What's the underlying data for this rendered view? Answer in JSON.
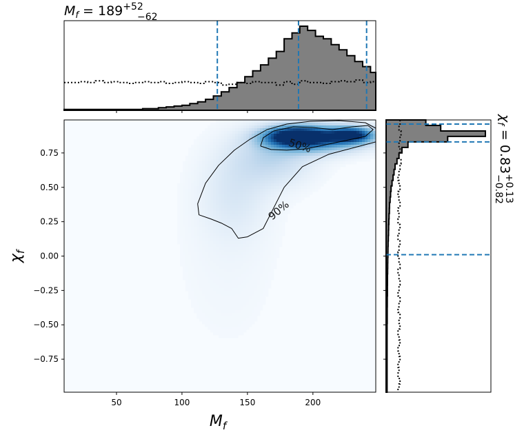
{
  "chart_data": {
    "type": "corner-plot",
    "top_title": {
      "symbol": "M",
      "sub": "f",
      "eq": " = ",
      "median": "189",
      "plus": "+52",
      "minus": "−62"
    },
    "right_title": {
      "symbol": "χ",
      "sub": "f",
      "eq": " = ",
      "median": "0.83",
      "plus": "+0.13",
      "minus": "−0.82"
    },
    "xlabel": {
      "symbol": "M",
      "sub": "f"
    },
    "ylabel": {
      "symbol": "χ",
      "sub": "f"
    },
    "xlim": [
      10,
      248
    ],
    "ylim": [
      -0.99,
      0.99
    ],
    "x_ticks": [
      50,
      100,
      150,
      200
    ],
    "x_tick_labels": [
      "50",
      "100",
      "150",
      "200"
    ],
    "y_ticks": [
      0.75,
      0.5,
      0.25,
      0.0,
      -0.25,
      -0.5,
      -0.75
    ],
    "y_tick_labels": [
      "0.75",
      "0.50",
      "0.25",
      "0.00",
      "−0.25",
      "−0.50",
      "−0.75"
    ],
    "top_histogram": {
      "bin_edges": [
        10,
        16,
        22,
        28,
        34,
        40,
        46,
        52,
        58,
        64,
        70,
        76,
        82,
        88,
        94,
        100,
        106,
        112,
        118,
        124,
        130,
        136,
        142,
        148,
        154,
        160,
        166,
        172,
        178,
        184,
        190,
        196,
        202,
        208,
        214,
        220,
        226,
        232,
        238,
        244,
        248
      ],
      "posterior": [
        0.01,
        0.01,
        0.01,
        0.01,
        0.01,
        0.01,
        0.01,
        0.01,
        0.01,
        0.01,
        0.02,
        0.02,
        0.03,
        0.04,
        0.05,
        0.06,
        0.08,
        0.1,
        0.13,
        0.17,
        0.22,
        0.27,
        0.33,
        0.4,
        0.47,
        0.54,
        0.62,
        0.7,
        0.85,
        0.92,
        1.0,
        0.95,
        0.88,
        0.85,
        0.78,
        0.72,
        0.65,
        0.58,
        0.52,
        0.45
      ],
      "prior": [
        0.33,
        0.33,
        0.34,
        0.33,
        0.35,
        0.33,
        0.34,
        0.33,
        0.32,
        0.33,
        0.34,
        0.33,
        0.34,
        0.32,
        0.33,
        0.34,
        0.33,
        0.32,
        0.34,
        0.33,
        0.3,
        0.31,
        0.33,
        0.32,
        0.34,
        0.33,
        0.33,
        0.3,
        0.34,
        0.31,
        0.35,
        0.33,
        0.33,
        0.32,
        0.34,
        0.35,
        0.34,
        0.36,
        0.33,
        0.34
      ],
      "quantile_lines": [
        127,
        189,
        241
      ]
    },
    "right_histogram": {
      "bin_edges": [
        0.99,
        0.95,
        0.91,
        0.87,
        0.83,
        0.79,
        0.75,
        0.71,
        0.67,
        0.63,
        0.59,
        0.55,
        0.51,
        0.47,
        0.43,
        0.39,
        0.35,
        0.31,
        0.27,
        0.23,
        0.19,
        0.15,
        0.11,
        0.07,
        0.03,
        -0.01,
        -0.05,
        -0.09,
        -0.13,
        -0.17,
        -0.21,
        -0.25,
        -0.29,
        -0.33,
        -0.37,
        -0.41,
        -0.45,
        -0.49,
        -0.53,
        -0.57,
        -0.61,
        -0.65,
        -0.69,
        -0.73,
        -0.77,
        -0.81,
        -0.85,
        -0.89,
        -0.93,
        -0.97,
        -0.99
      ],
      "posterior": [
        0.4,
        0.55,
        1.0,
        0.62,
        0.22,
        0.16,
        0.13,
        0.11,
        0.09,
        0.08,
        0.07,
        0.06,
        0.05,
        0.045,
        0.04,
        0.035,
        0.033,
        0.03,
        0.028,
        0.026,
        0.024,
        0.022,
        0.02,
        0.019,
        0.018,
        0.017,
        0.016,
        0.015,
        0.014,
        0.014,
        0.013,
        0.013,
        0.012,
        0.012,
        0.011,
        0.011,
        0.011,
        0.01,
        0.01,
        0.01,
        0.01,
        0.01,
        0.01,
        0.01,
        0.01,
        0.01,
        0.01,
        0.01,
        0.01,
        0.01
      ],
      "prior": [
        0.14,
        0.13,
        0.15,
        0.14,
        0.13,
        0.14,
        0.13,
        0.15,
        0.14,
        0.13,
        0.12,
        0.13,
        0.14,
        0.12,
        0.13,
        0.14,
        0.12,
        0.13,
        0.12,
        0.14,
        0.13,
        0.12,
        0.14,
        0.13,
        0.12,
        0.13,
        0.14,
        0.12,
        0.13,
        0.14,
        0.13,
        0.12,
        0.14,
        0.13,
        0.12,
        0.14,
        0.13,
        0.14,
        0.12,
        0.13,
        0.14,
        0.12,
        0.13,
        0.14,
        0.12,
        0.13,
        0.12,
        0.14,
        0.13,
        0.12
      ],
      "quantile_lines": [
        0.96,
        0.83,
        0.01
      ]
    },
    "density_blobs": [
      {
        "x": 186,
        "y": 0.87,
        "sx": 16,
        "sy": 0.05,
        "w": 1.0
      },
      {
        "x": 230,
        "y": 0.88,
        "sx": 12,
        "sy": 0.04,
        "w": 0.85
      },
      {
        "x": 207,
        "y": 0.85,
        "sx": 24,
        "sy": 0.07,
        "w": 0.6
      },
      {
        "x": 170,
        "y": 0.72,
        "sx": 22,
        "sy": 0.14,
        "w": 0.25
      },
      {
        "x": 140,
        "y": 0.45,
        "sx": 18,
        "sy": 0.22,
        "w": 0.12
      },
      {
        "x": 135,
        "y": 0.05,
        "sx": 30,
        "sy": 0.55,
        "w": 0.04
      }
    ],
    "contours": [
      {
        "label": "50%",
        "label_x": 190,
        "label_y": 0.8,
        "label_rotation": 18,
        "points": [
          [
            160,
            0.8
          ],
          [
            162,
            0.86
          ],
          [
            170,
            0.91
          ],
          [
            185,
            0.94
          ],
          [
            200,
            0.935
          ],
          [
            215,
            0.92
          ],
          [
            230,
            0.94
          ],
          [
            242,
            0.95
          ],
          [
            246,
            0.92
          ],
          [
            240,
            0.87
          ],
          [
            225,
            0.84
          ],
          [
            210,
            0.81
          ],
          [
            195,
            0.78
          ],
          [
            180,
            0.77
          ],
          [
            168,
            0.775
          ],
          [
            160,
            0.8
          ]
        ]
      },
      {
        "label": "90%",
        "label_x": 174,
        "label_y": 0.33,
        "label_rotation": -40,
        "points": [
          [
            248,
            0.83
          ],
          [
            232,
            0.79
          ],
          [
            212,
            0.74
          ],
          [
            192,
            0.65
          ],
          [
            178,
            0.5
          ],
          [
            170,
            0.35
          ],
          [
            162,
            0.2
          ],
          [
            150,
            0.14
          ],
          [
            143,
            0.13
          ],
          [
            138,
            0.2
          ],
          [
            130,
            0.24
          ],
          [
            122,
            0.27
          ],
          [
            113,
            0.3
          ],
          [
            112,
            0.38
          ],
          [
            118,
            0.53
          ],
          [
            128,
            0.66
          ],
          [
            140,
            0.77
          ],
          [
            152,
            0.85
          ],
          [
            165,
            0.92
          ],
          [
            180,
            0.96
          ],
          [
            198,
            0.98
          ],
          [
            220,
            0.985
          ],
          [
            240,
            0.97
          ],
          [
            248,
            0.93
          ]
        ]
      }
    ],
    "colors": {
      "hist_fill": "#808080",
      "hist_edge": "#000000",
      "quantile": "#1f77b4",
      "density_low": "#f7fbff",
      "density_high": "#08306b"
    }
  }
}
